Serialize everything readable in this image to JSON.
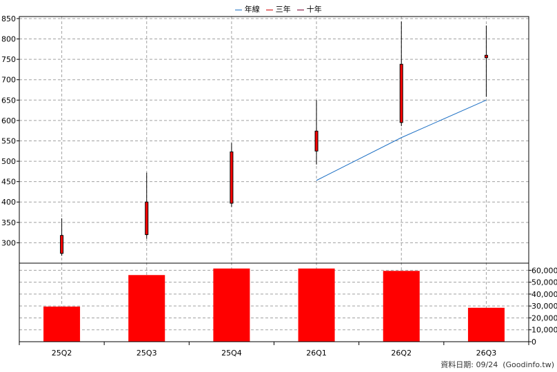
{
  "legend": [
    {
      "name": "年線",
      "color": "#1c6fc4"
    },
    {
      "name": "三年",
      "color": "#d00000"
    },
    {
      "name": "十年",
      "color": "#7a0030"
    }
  ],
  "footer": "資料日期: 09/24  (Goodinfo.tw)",
  "chart_data": {
    "type": "candlestick",
    "categories": [
      "25Q2",
      "25Q3",
      "25Q4",
      "26Q1",
      "26Q2",
      "26Q3"
    ],
    "price_axis": {
      "min": 250,
      "max": 855,
      "ticks": [
        300,
        350,
        400,
        450,
        500,
        550,
        600,
        650,
        700,
        750,
        800,
        850
      ]
    },
    "candles": [
      {
        "open": 318,
        "close": 274,
        "high": 360,
        "low": 268
      },
      {
        "open": 400,
        "close": 320,
        "high": 472,
        "low": 310
      },
      {
        "open": 523,
        "close": 397,
        "high": 545,
        "low": 388
      },
      {
        "open": 574,
        "close": 525,
        "high": 650,
        "low": 492
      },
      {
        "open": 738,
        "close": 595,
        "high": 843,
        "low": 586
      },
      {
        "open": 760,
        "close": 754,
        "high": 833,
        "low": 658
      }
    ],
    "year_line": {
      "name": "年線",
      "points": [
        {
          "x": "26Q1",
          "y": 453
        },
        {
          "x": "26Q2",
          "y": 558
        },
        {
          "x": "26Q3",
          "y": 650
        }
      ]
    },
    "volume_axis": {
      "min": 0,
      "max": 66000,
      "ticks": [
        0,
        10000,
        20000,
        30000,
        40000,
        50000,
        60000
      ],
      "tick_labels": [
        "0",
        "10,000",
        "20,000",
        "30,000",
        "40,000",
        "50,000",
        "60,000"
      ]
    },
    "volumes": [
      29500,
      56000,
      61500,
      61500,
      59500,
      28500
    ],
    "colors": {
      "up": "#ff0000",
      "down": "#ff0000",
      "year_line": "#1c6fc4"
    }
  }
}
